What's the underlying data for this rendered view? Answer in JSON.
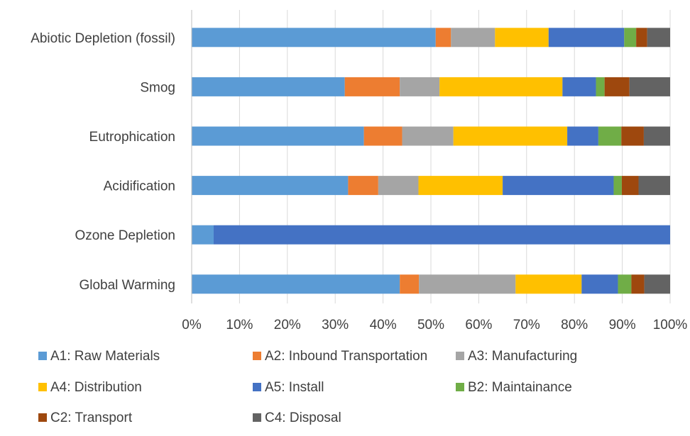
{
  "chart_data": {
    "type": "bar",
    "orientation": "horizontal",
    "stacked": "percent",
    "categories": [
      "Abiotic Depletion (fossil)",
      "Smog",
      "Eutrophication",
      "Acidification",
      "Ozone Depletion",
      "Global Warming"
    ],
    "series": [
      {
        "name": "A1: Raw Materials",
        "color": "#5b9bd5",
        "values": [
          51.0,
          32.0,
          36.0,
          32.7,
          4.6,
          43.5
        ]
      },
      {
        "name": "A2: Inbound Transportation",
        "color": "#ed7d31",
        "values": [
          3.2,
          11.5,
          8.0,
          6.3,
          0.0,
          4.0
        ]
      },
      {
        "name": "A3: Manufacturing",
        "color": "#a5a5a5",
        "values": [
          9.2,
          8.3,
          10.7,
          8.4,
          0.0,
          20.2
        ]
      },
      {
        "name": "A4: Distribution",
        "color": "#ffc000",
        "values": [
          11.2,
          25.7,
          23.8,
          17.6,
          0.0,
          13.8
        ]
      },
      {
        "name": "A5: Install",
        "color": "#4472c4",
        "values": [
          15.8,
          7.0,
          6.5,
          23.2,
          95.4,
          7.6
        ]
      },
      {
        "name": "B2: Maintainance",
        "color": "#70ad47",
        "values": [
          2.5,
          1.8,
          4.8,
          1.7,
          0.0,
          2.8
        ]
      },
      {
        "name": "C2: Transport",
        "color": "#9e480e",
        "values": [
          2.3,
          5.2,
          4.7,
          3.5,
          0.0,
          2.7
        ]
      },
      {
        "name": "C4: Disposal",
        "color": "#636363",
        "values": [
          4.8,
          8.5,
          5.5,
          6.6,
          0.0,
          5.4
        ]
      }
    ],
    "xlim": [
      0,
      100
    ],
    "xticks": [
      0,
      10,
      20,
      30,
      40,
      50,
      60,
      70,
      80,
      90,
      100
    ],
    "xtick_labels": [
      "0%",
      "10%",
      "20%",
      "30%",
      "40%",
      "50%",
      "60%",
      "70%",
      "80%",
      "90%",
      "100%"
    ],
    "grid": "vertical",
    "legend_position": "bottom"
  }
}
